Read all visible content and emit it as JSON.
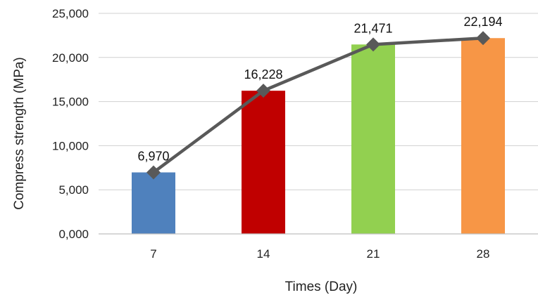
{
  "chart_data": {
    "type": "bar",
    "categories": [
      "7",
      "14",
      "21",
      "28"
    ],
    "values": [
      6970,
      16228,
      21471,
      22194
    ],
    "data_labels": [
      "6,970",
      "16,228",
      "21,471",
      "22,194"
    ],
    "bar_colors": [
      "#4f81bd",
      "#c00000",
      "#92d050",
      "#f79646"
    ],
    "line_overlay": {
      "values": [
        6970,
        16228,
        21471,
        22194
      ],
      "color": "#595959",
      "marker": "diamond"
    },
    "xlabel": "Times (Day)",
    "ylabel": "Compress strength (MPa)",
    "ylim": [
      0,
      25000
    ],
    "yticks": [
      0,
      5000,
      10000,
      15000,
      20000,
      25000
    ],
    "ytick_labels": [
      "0,000",
      "5,000",
      "10,000",
      "15,000",
      "20,000",
      "25,000"
    ],
    "grid": true,
    "legend": "none"
  }
}
